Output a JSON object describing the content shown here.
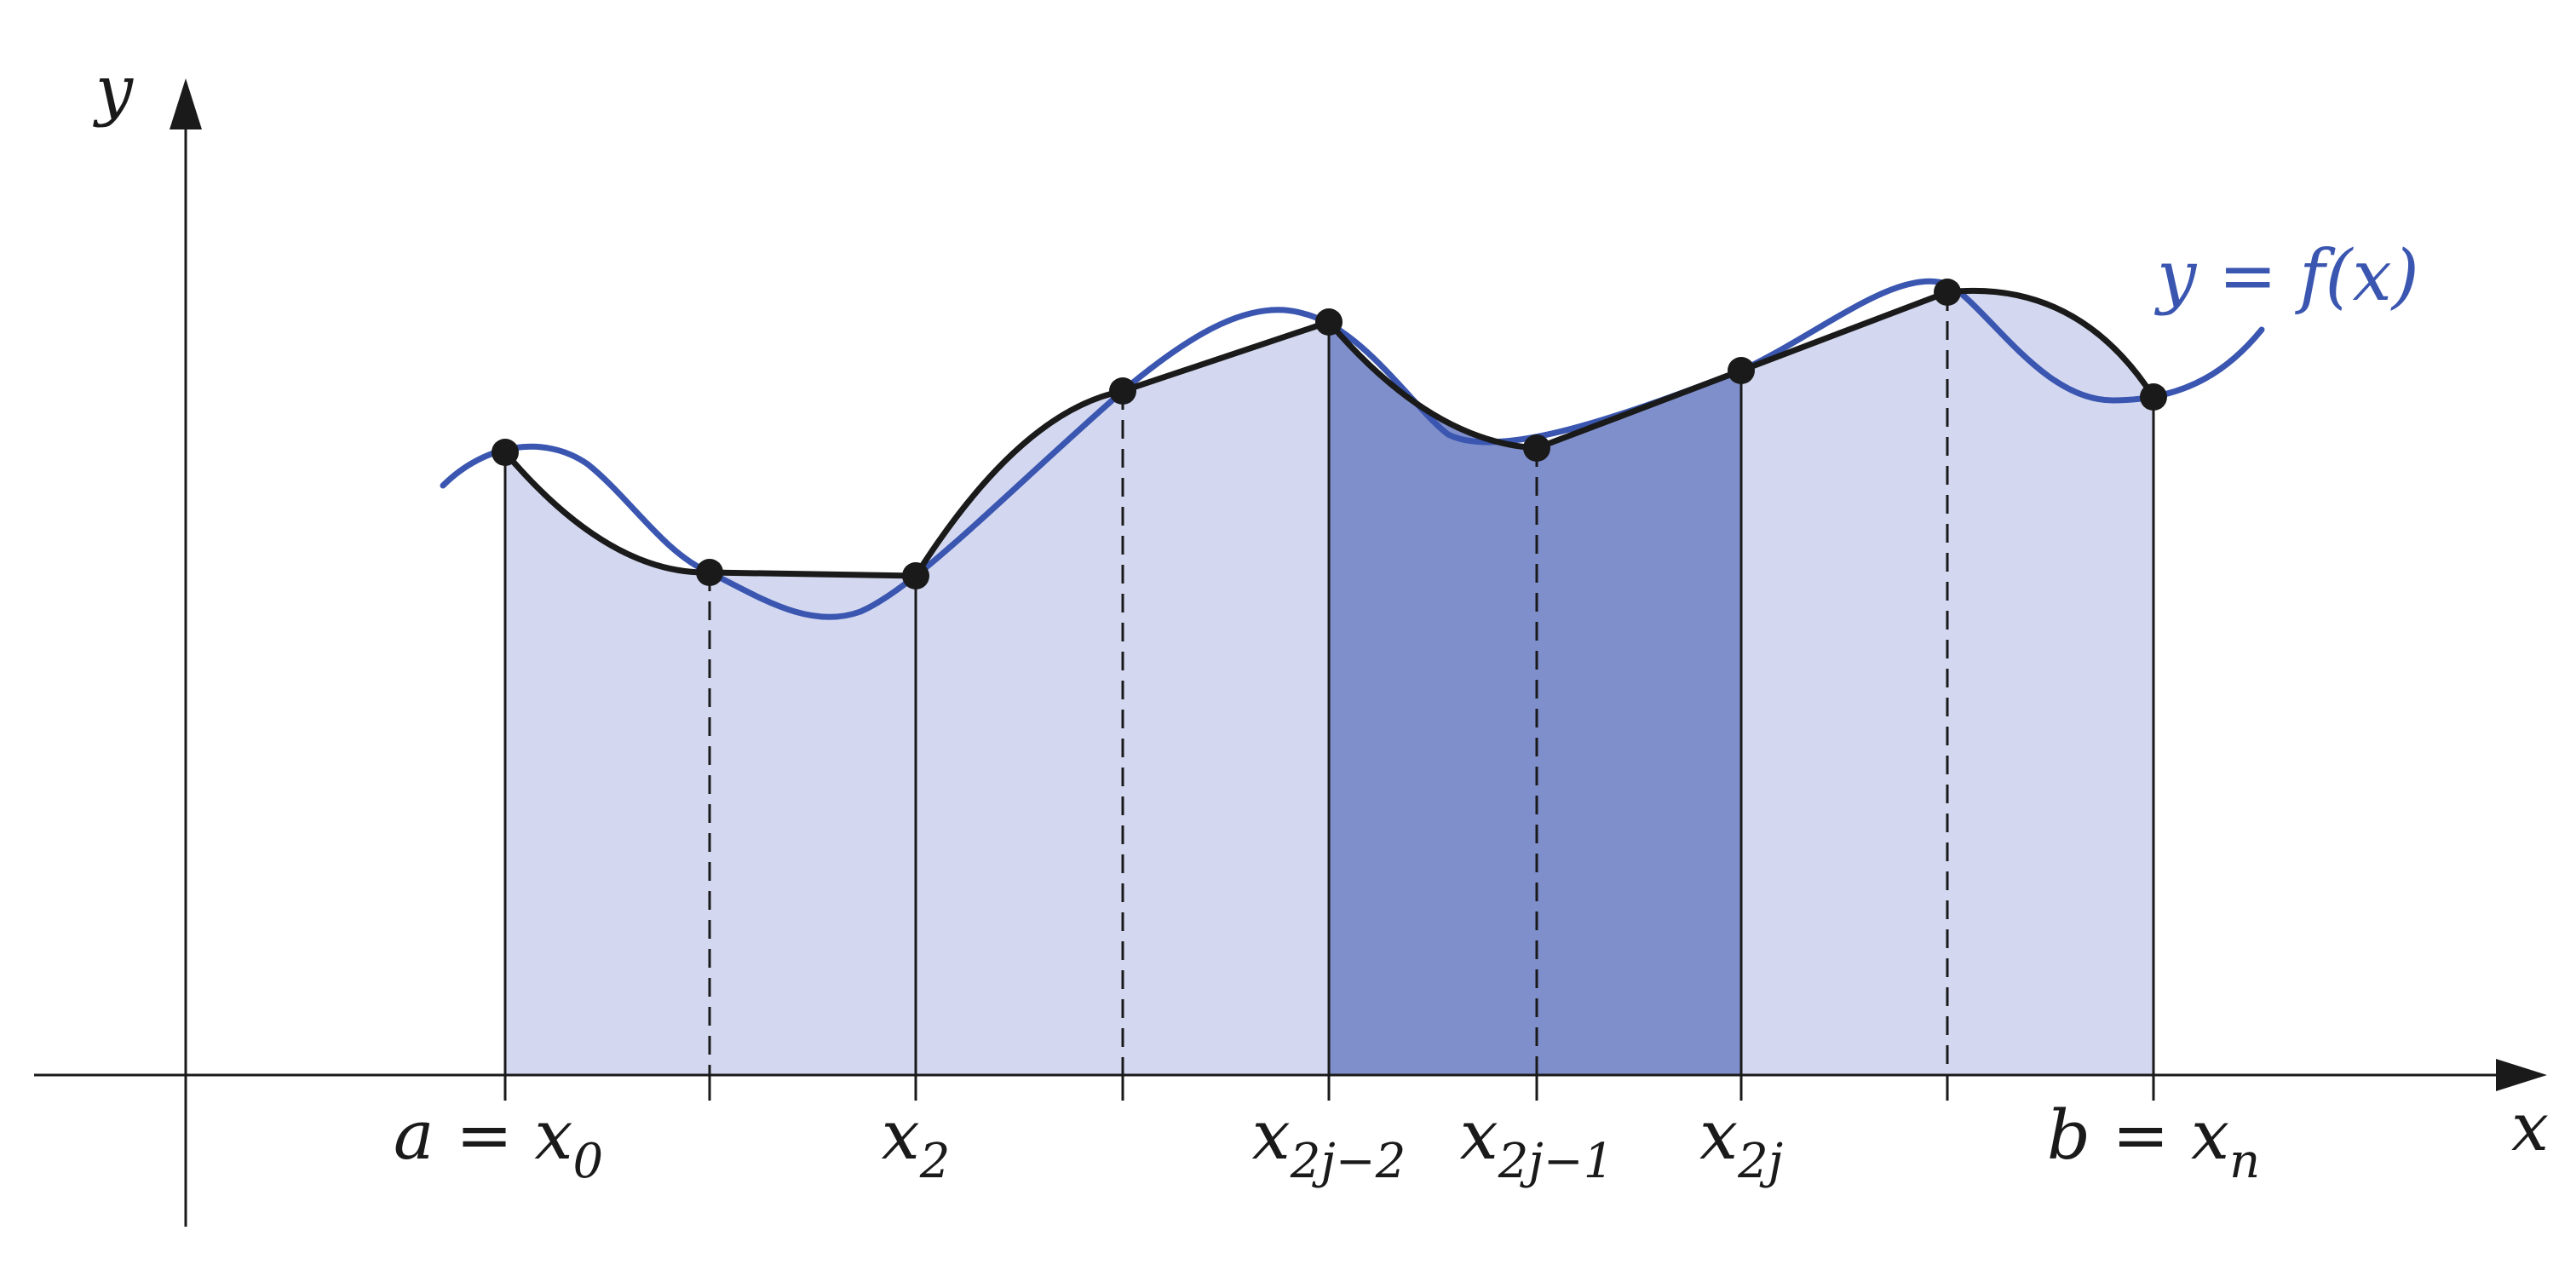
{
  "axes": {
    "x_label": "x",
    "y_label": "y"
  },
  "curve": {
    "label": "y = f(x)"
  },
  "tick_labels": [
    {
      "main": "a = x",
      "sub": "0"
    },
    {
      "main": "x",
      "sub": "2"
    },
    {
      "main": "x",
      "sub": "2j−2"
    },
    {
      "main": "x",
      "sub": "2j−1"
    },
    {
      "main": "x",
      "sub": "2j"
    },
    {
      "main": "b = x",
      "sub": "n"
    }
  ],
  "colors": {
    "light_fill": "#d3d8f0",
    "dark_fill": "#7f8fcb",
    "curve": "#3a56b0",
    "parabola": "#1a1a1a",
    "axis": "#1a1a1a"
  }
}
